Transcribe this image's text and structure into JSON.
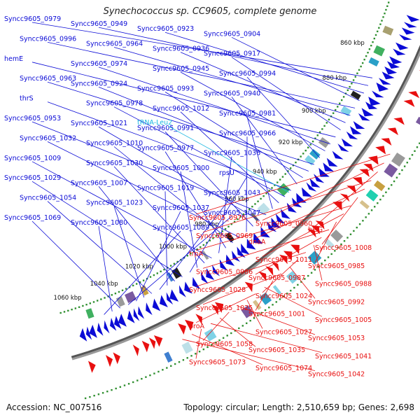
{
  "title": "Synechococcus sp. CC9605, complete genome",
  "footer": {
    "accession": "Accession: NC_007516",
    "stats": "Topology: circular; Length: 2,510,659 bp; Genes: 2,698"
  },
  "colors": {
    "forward": "#0b0bd6",
    "reverse": "#e81010",
    "trna": "#19b6e0",
    "backbone": "#555555",
    "dots": "#2f8f2f"
  },
  "ticks": [
    "860 kbp",
    "880 kbp",
    "900 kbp",
    "920 kbp",
    "940 kbp",
    "960 kbp",
    "980 kbp",
    "1000 kbp",
    "1020 kbp",
    "1040 kbp",
    "1060 kbp"
  ],
  "forward_labels": [
    "Syncc9605_0979",
    "Syncc9605_0949",
    "Syncc9605_0923",
    "Syncc9605_0904",
    "Syncc9605_0996",
    "Syncc9605_0964",
    "Syncc9605_0936",
    "Syncc9605_0917",
    "hemE",
    "Syncc9605_0974",
    "Syncc9605_0945",
    "Syncc9605_0994",
    "Syncc9605_0963",
    "Syncc9605_0924",
    "Syncc9605_0993",
    "Syncc9605_0940",
    "thrS",
    "Syncc9605_0978",
    "Syncc9605_1012",
    "Syncc9605_0981",
    "Syncc9605_0953",
    "Syncc9605_1021",
    "Syncc9605_0991",
    "Syncc9605_0966",
    "Syncc9605_1032",
    "Syncc9605_1010",
    "Syncc9605_0977",
    "Syncc9605_1036",
    "Syncc9605_1009",
    "Syncc9605_1030",
    "Syncc9605_1000",
    "rpsU",
    "Syncc9605_1029",
    "Syncc9605_1007",
    "Syncc9605_1019",
    "Syncc9605_1043",
    "Syncc9605_1054",
    "Syncc9605_1023",
    "Syncc9605_1037",
    "Syncc9605_1047",
    "Syncc9605_1069",
    "Syncc9605_1080",
    "Syncc9605_1089"
  ],
  "trna_labels": [
    "tRNA-Leu2"
  ],
  "reverse_labels": [
    "Syncc9605_0976",
    "Syncc9605_0960",
    "hisG",
    "Syncc9605_0969",
    "dnaA",
    "Syncc9605_1008",
    "trpA",
    "Syncc9605_1011",
    "Syncc9605_0985",
    "Syncc9605_0986",
    "Syncc9605_0987",
    "Syncc9605_0988",
    "Syncc9605_1028",
    "Syncc9605_1024",
    "Syncc9605_0992",
    "Syncc9605_1025",
    "Syncc9605_1001",
    "Syncc9605_1005",
    "proA",
    "Syncc9605_1027",
    "Syncc9605_1053",
    "Syncc9605_1058",
    "Syncc9605_1035",
    "Syncc9605_1041",
    "Syncc9605_1073",
    "Syncc9605_1074",
    "Syncc9605_1042"
  ]
}
